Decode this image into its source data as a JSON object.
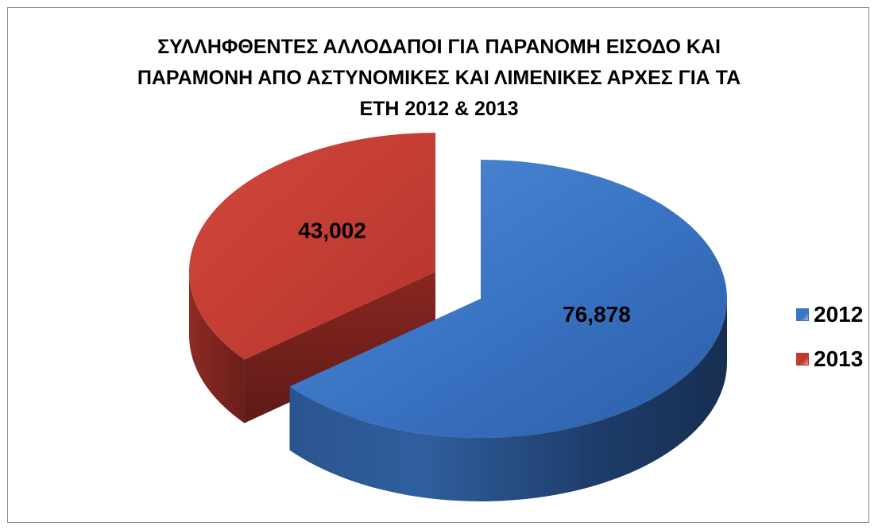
{
  "chart_data": {
    "type": "pie",
    "title_lines": [
      "ΣΥΛΛΗΦΘΕΝΤΕΣ ΑΛΛΟΔΑΠΟΙ ΓΙΑ ΠΑΡΑΝΟΜΗ ΕΙΣΟΔΟ ΚΑΙ",
      "ΠΑΡΑΜΟΝΗ ΑΠΟ ΑΣΤΥΝΟΜΙΚΕΣ ΚΑΙ ΛΙΜΕΝΙΚΕΣ ΑΡΧΕΣ ΓΙΑ ΤΑ",
      "ΕΤΗ 2012 & 2013"
    ],
    "categories": [
      "2012",
      "2013"
    ],
    "values": [
      76878,
      43002
    ],
    "data_labels": [
      "76,878",
      "43,002"
    ],
    "colors": [
      "#3a74c4",
      "#c0392f"
    ],
    "legend_position": "right",
    "style": "3d-exploded"
  }
}
